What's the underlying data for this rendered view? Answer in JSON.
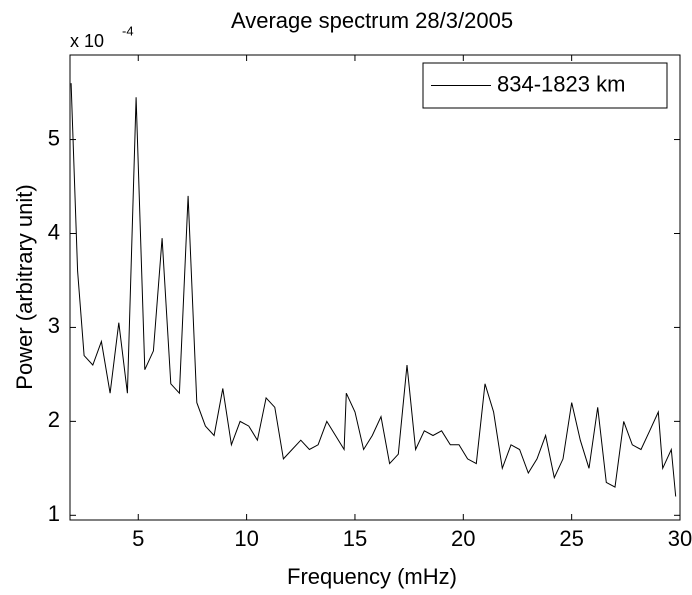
{
  "chart_data": {
    "type": "line",
    "title": "Average spectrum 28/3/2005",
    "x_label": "Frequency (mHz)",
    "y_label": "Power (arbitrary unit)",
    "y_scale_base": "x 10",
    "y_scale_exponent": "-4",
    "xlim": [
      1.85,
      30
    ],
    "ylim": [
      0.95,
      5.9
    ],
    "xticks": [
      5,
      10,
      15,
      20,
      25,
      30
    ],
    "yticks": [
      1,
      2,
      3,
      4,
      5
    ],
    "grid": false,
    "legend": "top-right",
    "x": [
      1.9,
      2.2,
      2.5,
      2.9,
      3.3,
      3.7,
      4.1,
      4.5,
      4.9,
      5.3,
      5.7,
      6.1,
      6.5,
      6.9,
      7.3,
      7.7,
      8.1,
      8.5,
      8.9,
      9.3,
      9.7,
      10.1,
      10.5,
      10.9,
      11.3,
      11.7,
      12.1,
      12.5,
      12.9,
      13.3,
      13.7,
      14.1,
      14.5,
      14.6,
      15.0,
      15.4,
      15.8,
      16.2,
      16.6,
      17.0,
      17.4,
      17.8,
      18.2,
      18.6,
      19.0,
      19.4,
      19.8,
      20.2,
      20.6,
      21.0,
      21.4,
      21.8,
      22.2,
      22.6,
      23.0,
      23.4,
      23.8,
      24.2,
      24.6,
      25.0,
      25.4,
      25.8,
      26.2,
      26.6,
      27.0,
      27.4,
      27.8,
      28.2,
      28.6,
      29.0,
      29.2,
      29.6,
      29.8
    ],
    "series": [
      {
        "name": "834-1823 km",
        "color": "#000000",
        "values": [
          5.6,
          3.6,
          2.7,
          2.6,
          2.85,
          2.3,
          3.05,
          2.3,
          5.45,
          2.55,
          2.75,
          3.95,
          2.4,
          2.3,
          4.4,
          2.2,
          1.95,
          1.85,
          2.35,
          1.75,
          2.0,
          1.95,
          1.8,
          2.25,
          2.15,
          1.6,
          1.7,
          1.8,
          1.7,
          1.75,
          2.0,
          1.85,
          1.7,
          2.3,
          2.1,
          1.7,
          1.85,
          2.05,
          1.55,
          1.65,
          2.6,
          1.7,
          1.9,
          1.85,
          1.9,
          1.75,
          1.75,
          1.6,
          1.55,
          2.4,
          2.1,
          1.5,
          1.75,
          1.7,
          1.45,
          1.6,
          1.85,
          1.4,
          1.6,
          2.2,
          1.8,
          1.5,
          2.15,
          1.35,
          1.3,
          2.0,
          1.75,
          1.7,
          1.9,
          2.1,
          1.5,
          1.7,
          1.2
        ]
      }
    ]
  }
}
